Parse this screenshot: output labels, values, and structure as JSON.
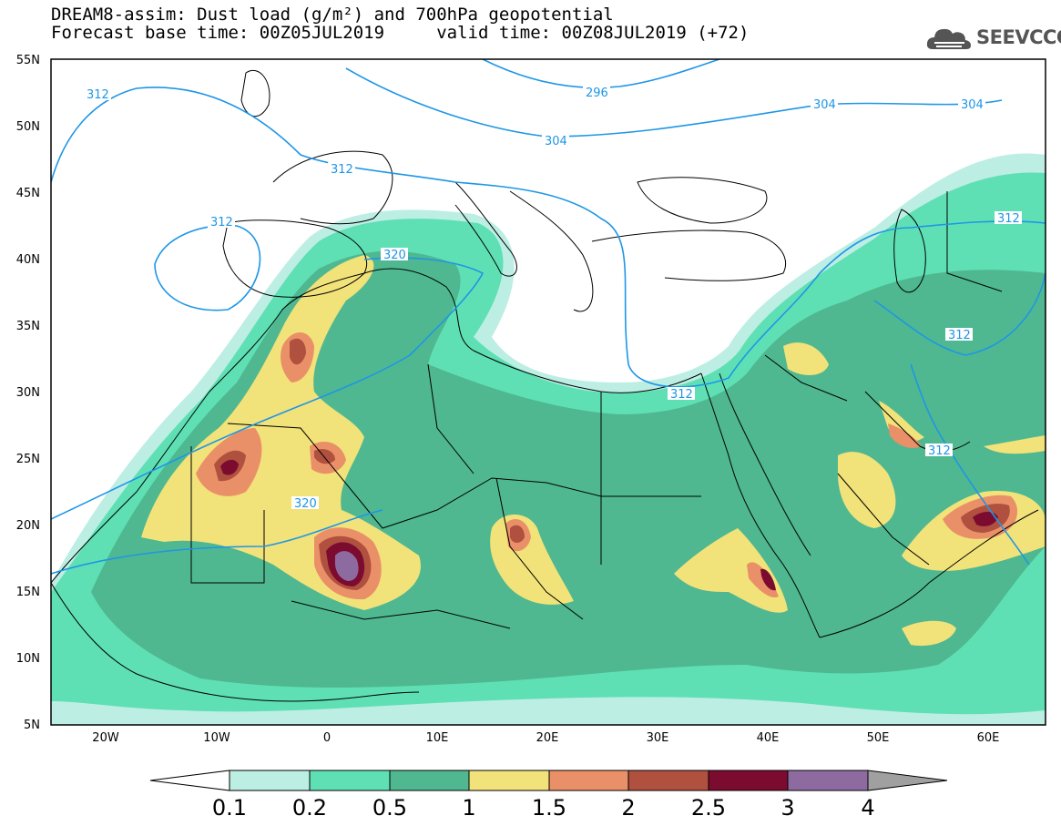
{
  "header": {
    "title_line1": "DREAM8-assim: Dust load (g/m²) and 700hPa geopotential",
    "title_line2": "Forecast base time: 00Z05JUL2019     valid time: 00Z08JUL2019 (+72)"
  },
  "logo": {
    "text": "SEEVCCC",
    "icon": "cloud-logo-icon"
  },
  "map": {
    "lat_labels": [
      "55N",
      "50N",
      "45N",
      "40N",
      "35N",
      "30N",
      "25N",
      "20N",
      "15N",
      "10N",
      "5N"
    ],
    "lon_labels": [
      "20W",
      "10W",
      "0",
      "10E",
      "20E",
      "30E",
      "40E",
      "50E",
      "60E"
    ],
    "contour_labels": [
      "312",
      "312",
      "312",
      "296",
      "304",
      "304",
      "304",
      "320",
      "320",
      "312",
      "312",
      "312",
      "312"
    ],
    "contour_color": "#1e96e6"
  },
  "colorbar": {
    "labels": [
      "0.1",
      "0.2",
      "0.5",
      "1",
      "1.5",
      "2",
      "2.5",
      "3",
      "4"
    ],
    "colors": [
      "#bdeee3",
      "#5fe0b4",
      "#4fb890",
      "#f2e27a",
      "#ea9068",
      "#b0503f",
      "#7c0b30",
      "#8d6ba0"
    ],
    "under_color": "#ffffff",
    "over_color": "#a0a0a0"
  }
}
